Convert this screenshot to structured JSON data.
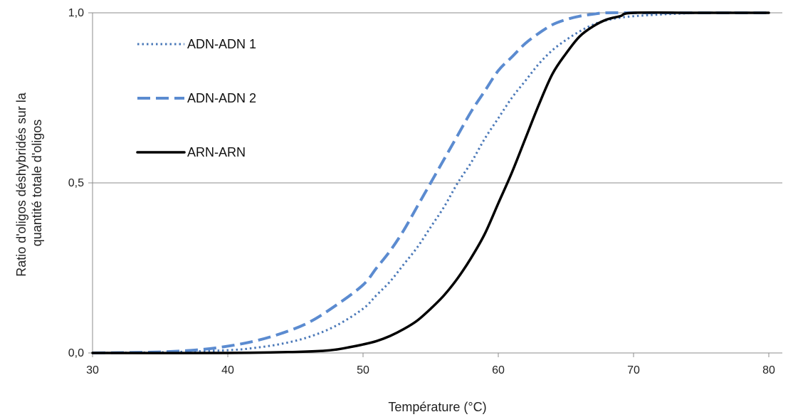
{
  "chart_data": {
    "type": "line",
    "title": "",
    "xlabel": "Température (°C)",
    "ylabel_lines": [
      "Ratio d'oligos déshybridés sur la",
      "quantité totale d'oligos"
    ],
    "xlim": [
      30,
      81
    ],
    "ylim": [
      0,
      1
    ],
    "xticks": [
      30,
      40,
      50,
      60,
      70,
      80
    ],
    "xtick_labels": [
      "30",
      "40",
      "50",
      "60",
      "70",
      "80"
    ],
    "yticks": [
      0,
      0.5,
      1
    ],
    "ytick_labels": [
      "0,0",
      "0,5",
      "1,0"
    ],
    "grid": "horizontal",
    "legend_position": "top-left",
    "series": [
      {
        "name": "ADN-ADN 1",
        "style": "dotted",
        "color": "#4a78b8",
        "x": [
          30,
          35,
          40,
          42,
          44,
          46,
          48,
          50,
          51,
          52,
          53,
          54,
          55,
          56,
          57,
          58,
          59,
          60,
          61,
          62,
          63,
          64,
          65,
          66,
          67,
          68,
          70,
          75,
          80
        ],
        "y": [
          0.0,
          0.002,
          0.008,
          0.015,
          0.027,
          0.047,
          0.08,
          0.13,
          0.17,
          0.21,
          0.26,
          0.31,
          0.37,
          0.43,
          0.5,
          0.56,
          0.63,
          0.69,
          0.75,
          0.8,
          0.85,
          0.89,
          0.92,
          0.945,
          0.965,
          0.978,
          0.99,
          1.0,
          1.0
        ]
      },
      {
        "name": "ADN-ADN 2",
        "style": "dashed",
        "color": "#5b8bd0",
        "x": [
          30,
          35,
          38,
          40,
          42,
          44,
          46,
          48,
          50,
          51,
          52,
          53,
          54,
          55,
          56,
          57,
          58,
          59,
          60,
          61,
          62,
          63,
          64,
          65,
          66,
          67,
          68,
          70,
          75,
          80
        ],
        "y": [
          0.0,
          0.003,
          0.01,
          0.02,
          0.035,
          0.058,
          0.09,
          0.14,
          0.2,
          0.25,
          0.3,
          0.36,
          0.43,
          0.5,
          0.57,
          0.64,
          0.71,
          0.77,
          0.83,
          0.87,
          0.91,
          0.94,
          0.965,
          0.98,
          0.99,
          0.996,
          1.0,
          1.0,
          1.0,
          1.0
        ]
      },
      {
        "name": "ARN-ARN",
        "style": "solid",
        "color": "#000000",
        "x": [
          30,
          40,
          45,
          47,
          48,
          49,
          50,
          51,
          52,
          53,
          54,
          55,
          56,
          57,
          58,
          59,
          60,
          61,
          62,
          63,
          64,
          65,
          66,
          67,
          68,
          69,
          70,
          75,
          80
        ],
        "y": [
          0.0,
          0.0,
          0.003,
          0.006,
          0.01,
          0.017,
          0.025,
          0.035,
          0.05,
          0.07,
          0.095,
          0.13,
          0.17,
          0.22,
          0.28,
          0.35,
          0.44,
          0.53,
          0.63,
          0.73,
          0.82,
          0.88,
          0.93,
          0.96,
          0.98,
          0.99,
          1.0,
          1.0,
          1.0
        ]
      }
    ]
  }
}
